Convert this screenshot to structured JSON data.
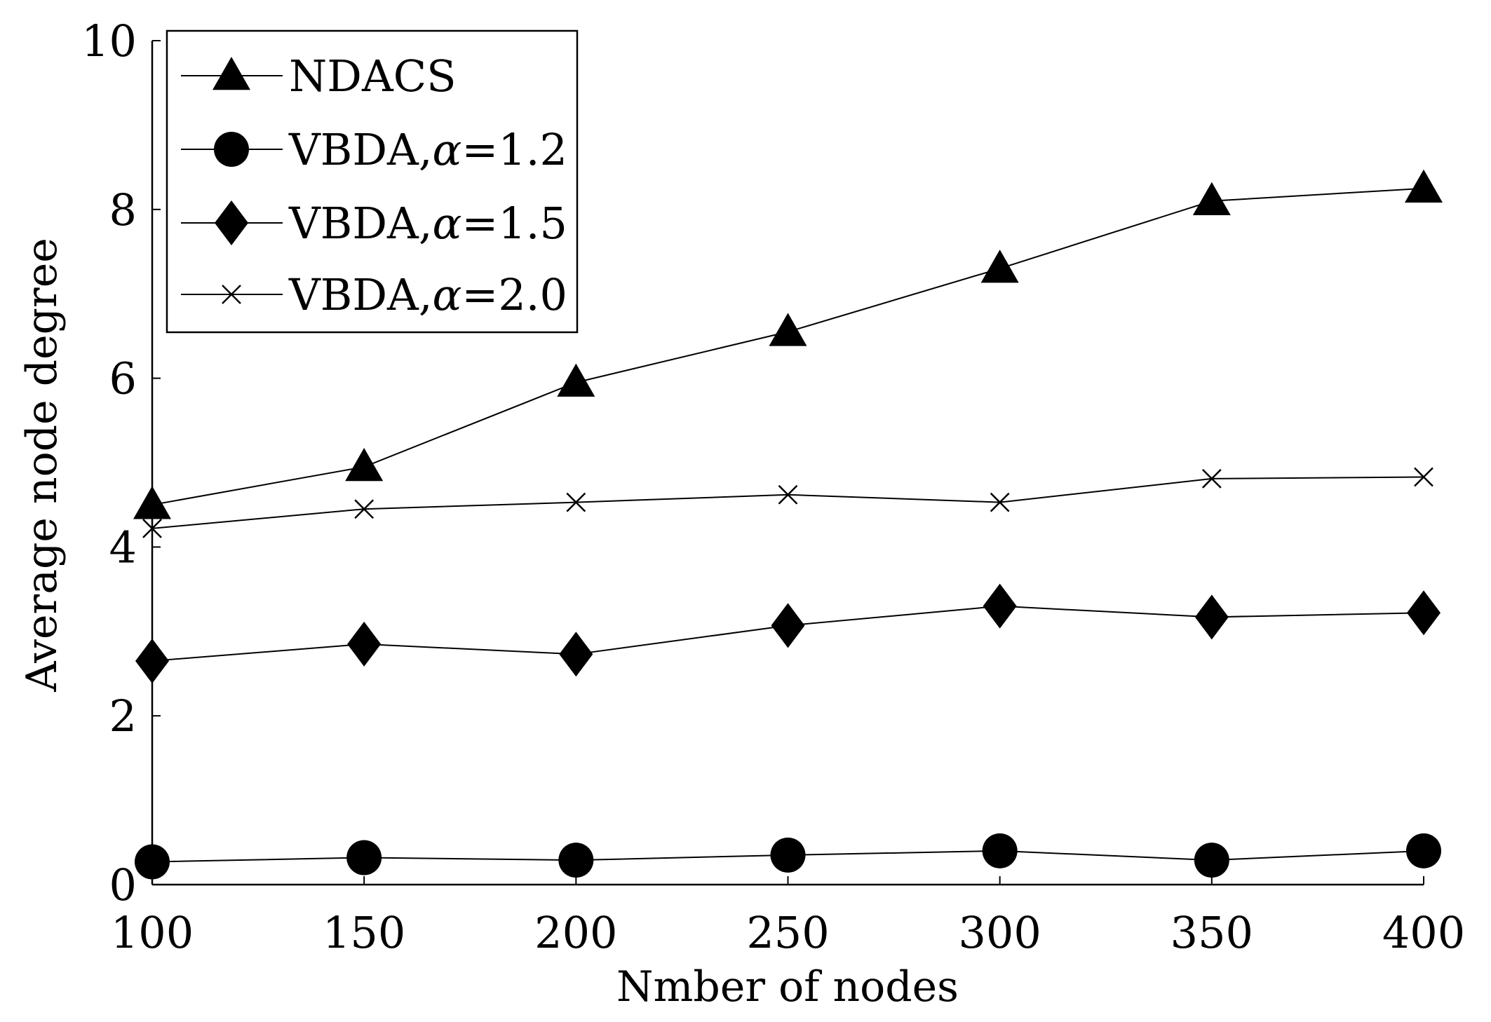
{
  "chart_data": {
    "type": "line",
    "title": "",
    "xlabel": "Nmber of nodes",
    "ylabel": "Average node degree",
    "x": [
      100,
      150,
      200,
      250,
      300,
      350,
      400
    ],
    "xlim": [
      100,
      400
    ],
    "ylim": [
      0,
      10
    ],
    "xticks": [
      "100",
      "150",
      "200",
      "250",
      "300",
      "350",
      "400"
    ],
    "yticks": [
      "0",
      "2",
      "4",
      "6",
      "8",
      "10"
    ],
    "grid": false,
    "legend_position": "top-left",
    "series": [
      {
        "name": "NDACS",
        "name_prefix": "NDACS",
        "name_symbol": "",
        "name_suffix": "",
        "marker": "triangle",
        "color": "#000000",
        "values": [
          4.5,
          4.95,
          5.95,
          6.55,
          7.3,
          8.1,
          8.25
        ]
      },
      {
        "name": "VBDA,α=1.2",
        "name_prefix": "VBDA,",
        "name_symbol": "α",
        "name_suffix": "=1.2",
        "marker": "circle",
        "color": "#000000",
        "values": [
          0.27,
          0.32,
          0.29,
          0.35,
          0.4,
          0.29,
          0.4
        ]
      },
      {
        "name": "VBDA,α=1.5",
        "name_prefix": "VBDA,",
        "name_symbol": "α",
        "name_suffix": "=1.5",
        "marker": "diamond",
        "color": "#000000",
        "values": [
          2.65,
          2.85,
          2.73,
          3.07,
          3.3,
          3.17,
          3.22
        ]
      },
      {
        "name": "VBDA,α=2.0",
        "name_prefix": "VBDA,",
        "name_symbol": "α",
        "name_suffix": "=2.0",
        "marker": "x",
        "color": "#000000",
        "values": [
          4.22,
          4.45,
          4.53,
          4.62,
          4.53,
          4.81,
          4.83
        ]
      }
    ]
  }
}
